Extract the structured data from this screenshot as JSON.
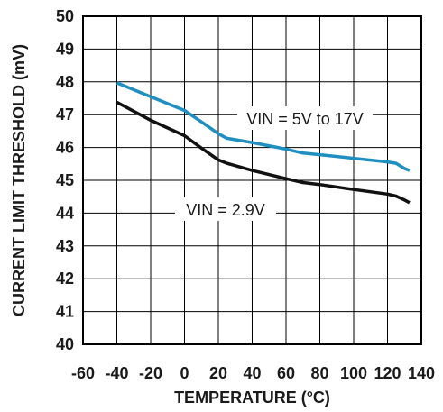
{
  "chart_data": {
    "type": "line",
    "xlabel": "TEMPERATURE (°C)",
    "ylabel": "CURRENT LIMIT THRESHOLD (mV)",
    "xlim": [
      -60,
      140
    ],
    "ylim": [
      40,
      50
    ],
    "x_ticks": [
      "-60",
      "-40",
      "-20",
      "0",
      "20",
      "40",
      "60",
      "80",
      "100",
      "120",
      "140"
    ],
    "y_ticks": [
      "40",
      "41",
      "42",
      "43",
      "44",
      "45",
      "46",
      "47",
      "48",
      "49",
      "50"
    ],
    "grid": true,
    "series": [
      {
        "name": "VIN = 5V to 17V",
        "color": "#1f8fc2",
        "x": [
          -40,
          -20,
          0,
          10,
          20,
          25,
          40,
          60,
          70,
          80,
          100,
          120,
          125,
          130,
          133
        ],
        "y": [
          47.97,
          47.55,
          47.13,
          46.78,
          46.42,
          46.28,
          46.15,
          45.95,
          45.83,
          45.78,
          45.67,
          45.56,
          45.52,
          45.36,
          45.3
        ]
      },
      {
        "name": "VIN = 2.9V",
        "color": "#111111",
        "x": [
          -40,
          -20,
          0,
          10,
          20,
          25,
          40,
          60,
          70,
          80,
          100,
          120,
          125,
          130,
          133
        ],
        "y": [
          47.38,
          46.83,
          46.36,
          45.98,
          45.62,
          45.52,
          45.3,
          45.05,
          44.93,
          44.87,
          44.72,
          44.58,
          44.52,
          44.4,
          44.32
        ]
      }
    ]
  }
}
